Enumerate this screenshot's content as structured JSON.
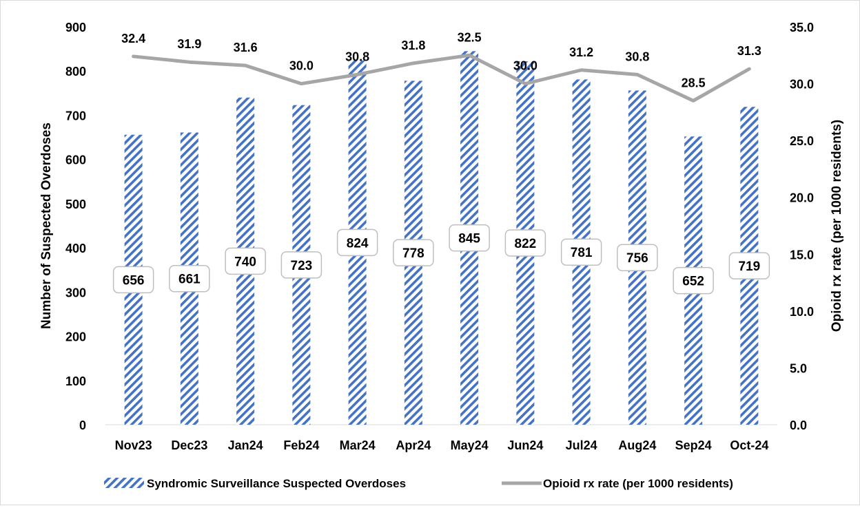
{
  "chart_data": {
    "type": "bar+line",
    "categories": [
      "Nov23",
      "Dec23",
      "Jan24",
      "Feb24",
      "Mar24",
      "Apr24",
      "May24",
      "Jun24",
      "Jul24",
      "Aug24",
      "Sep24",
      "Oct-24"
    ],
    "series": [
      {
        "name": "Syndromic Surveillance Suspected Overdoses",
        "type": "bar",
        "axis": "left",
        "values": [
          656,
          661,
          740,
          723,
          824,
          778,
          845,
          822,
          781,
          756,
          652,
          719
        ],
        "labels": [
          "656",
          "661",
          "740",
          "723",
          "824",
          "778",
          "845",
          "822",
          "781",
          "756",
          "652",
          "719"
        ]
      },
      {
        "name": "Opioid rx rate (per 1000 residents)",
        "type": "line",
        "axis": "right",
        "values": [
          32.4,
          31.9,
          31.6,
          30.0,
          30.8,
          31.8,
          32.5,
          30.0,
          31.2,
          30.8,
          28.5,
          31.3
        ],
        "labels": [
          "32.4",
          "31.9",
          "31.6",
          "30.0",
          "30.8",
          "31.8",
          "32.5",
          "30.0",
          "31.2",
          "30.8",
          "28.5",
          "31.3"
        ]
      }
    ],
    "ylabel": "Number of Suspected Overdoses",
    "y2label": "Opioid rx rate (per 1000 residents)",
    "ylim": [
      0,
      900
    ],
    "y2lim": [
      0,
      35
    ],
    "yticks": [
      "0",
      "100",
      "200",
      "300",
      "400",
      "500",
      "600",
      "700",
      "800",
      "900"
    ],
    "y2ticks": [
      "0.0",
      "5.0",
      "10.0",
      "15.0",
      "20.0",
      "25.0",
      "30.0",
      "35.0"
    ],
    "grid": false,
    "legend_position": "bottom",
    "colors": {
      "bar": "#4472c4",
      "line": "#a6a6a6",
      "label_box_border": "#bfbfbf"
    }
  }
}
